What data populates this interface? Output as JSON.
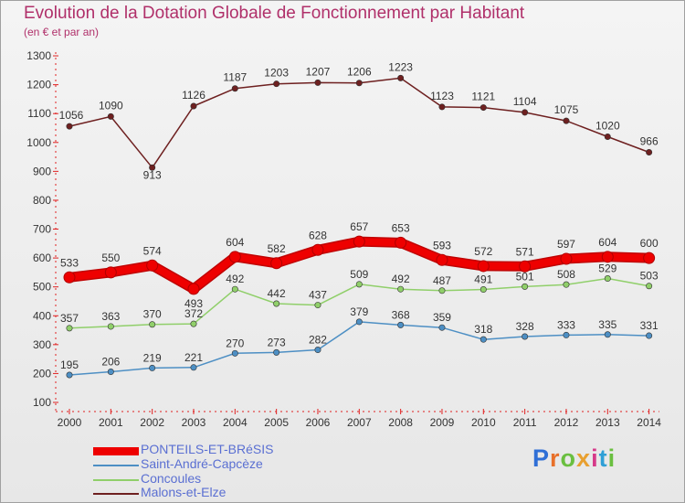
{
  "title": "Evolution de la Dotation Globale de Fonctionnement par Habitant",
  "subtitle": "(en € et par an)",
  "logo": {
    "text": "Proxiti"
  },
  "chart_data": {
    "type": "line",
    "title": "Evolution de la Dotation Globale de Fonctionnement par Habitant",
    "ylabel": "(en € et par an)",
    "xlabel": "",
    "ylim": [
      100,
      1300
    ],
    "yticks": [
      100,
      200,
      300,
      400,
      500,
      600,
      700,
      800,
      900,
      1000,
      1100,
      1200,
      1300
    ],
    "grid": false,
    "x": [
      "2000",
      "2001",
      "2002",
      "2003",
      "2004",
      "2005",
      "2006",
      "2007",
      "2008",
      "2009",
      "2010",
      "2011",
      "2012",
      "2013",
      "2014"
    ],
    "series": [
      {
        "name": "Malons-et-Elze",
        "color": "#6e2020",
        "values": [
          1056,
          1090,
          913,
          1126,
          1187,
          1203,
          1207,
          1206,
          1223,
          1123,
          1121,
          1104,
          1075,
          1020,
          966
        ]
      },
      {
        "name": "Concoules",
        "color": "#90cf6a",
        "values": [
          357,
          363,
          370,
          372,
          492,
          442,
          437,
          509,
          492,
          487,
          491,
          501,
          508,
          529,
          503
        ]
      },
      {
        "name": "Saint-André-Capcèze",
        "color": "#4d8fc4",
        "values": [
          195,
          206,
          219,
          221,
          270,
          273,
          282,
          379,
          368,
          359,
          318,
          328,
          333,
          335,
          331
        ]
      },
      {
        "name": "PONTEILS-ET-BRéSIS",
        "color": "#ee0000",
        "values": [
          533,
          550,
          574,
          493,
          604,
          582,
          628,
          657,
          653,
          593,
          572,
          571,
          597,
          604,
          600
        ]
      }
    ]
  },
  "legend": [
    {
      "label": "PONTEILS-ET-BRéSIS",
      "color": "#ee0000"
    },
    {
      "label": "Saint-André-Capcèze",
      "color": "#4d8fc4"
    },
    {
      "label": "Concoules",
      "color": "#90cf6a"
    },
    {
      "label": "Malons-et-Elze",
      "color": "#6e2020"
    }
  ]
}
